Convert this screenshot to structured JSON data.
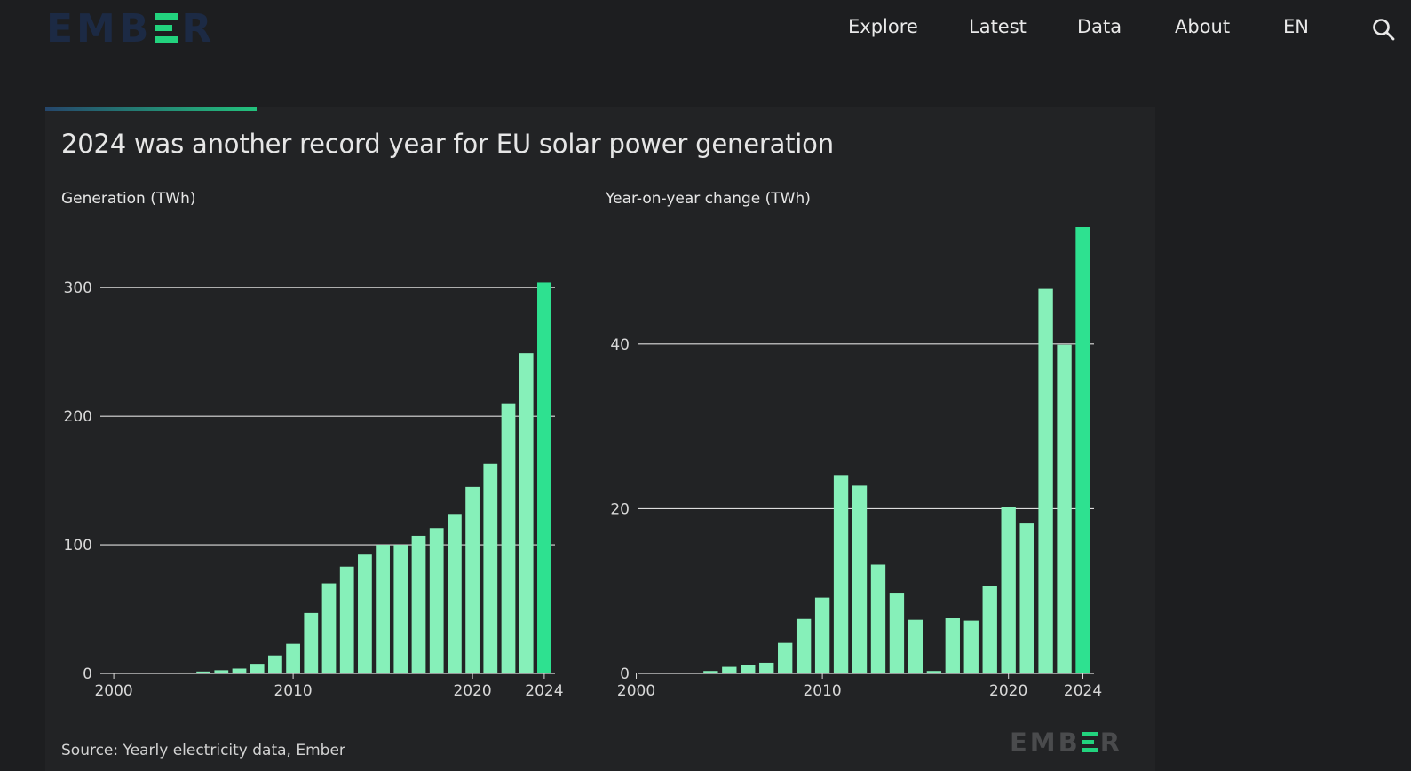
{
  "header": {
    "logo": "EMBER",
    "nav": [
      "Explore",
      "Latest",
      "Data",
      "About",
      "EN"
    ]
  },
  "card": {
    "title": "2024 was another record year for EU solar power generation",
    "source": "Source: Yearly electricity data, Ember",
    "footer_logo": "EMBER"
  },
  "colors": {
    "bar": "#86f0b9",
    "bar_highlight": "#2ee190",
    "gridline": "#dcdcdc",
    "background": "#222325",
    "brand_green": "#22d37e"
  },
  "chart_data": [
    {
      "type": "bar",
      "ylabel": "Generation (TWh)",
      "x": [
        2000,
        2001,
        2002,
        2003,
        2004,
        2005,
        2006,
        2007,
        2008,
        2009,
        2010,
        2011,
        2012,
        2013,
        2014,
        2015,
        2016,
        2017,
        2018,
        2019,
        2020,
        2021,
        2022,
        2023,
        2024
      ],
      "values": [
        0.1,
        0.2,
        0.3,
        0.4,
        0.7,
        1.5,
        2.5,
        3.8,
        7.5,
        14,
        23,
        47,
        70,
        83,
        93,
        100,
        100,
        107,
        113,
        124,
        145,
        163,
        210,
        249,
        304
      ],
      "highlight": [
        2024
      ],
      "xticks": [
        2000,
        2010,
        2020,
        2024
      ],
      "yticks": [
        0,
        100,
        200,
        300
      ],
      "ylim": [
        0,
        305
      ],
      "grid": true
    },
    {
      "type": "bar",
      "ylabel": "Year-on-year change (TWh)",
      "x": [
        2001,
        2002,
        2003,
        2004,
        2005,
        2006,
        2007,
        2008,
        2009,
        2010,
        2011,
        2012,
        2013,
        2014,
        2015,
        2016,
        2017,
        2018,
        2019,
        2020,
        2021,
        2022,
        2023,
        2024
      ],
      "values": [
        0.1,
        0.1,
        0.1,
        0.3,
        0.8,
        1.0,
        1.3,
        3.7,
        6.6,
        9.2,
        24.1,
        22.8,
        13.2,
        9.8,
        6.5,
        0.3,
        6.7,
        6.4,
        10.6,
        20.2,
        18.2,
        46.7,
        39.9,
        54.2
      ],
      "highlight": [
        2024
      ],
      "xticks": [
        2000,
        2010,
        2020,
        2024
      ],
      "yticks": [
        0,
        20,
        40
      ],
      "ylim": [
        0,
        54.2
      ],
      "grid": true
    }
  ]
}
